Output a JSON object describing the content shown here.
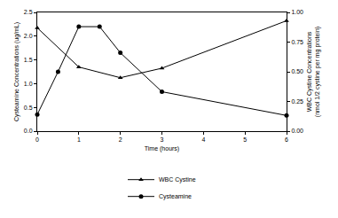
{
  "chart_data": {
    "type": "line",
    "x_label": "Time (hours)",
    "y_label": "Cysteamine Concentrations (ug/mL)",
    "y2_label": "WBC Cystine Concentrations\n(nmol 1/2 cystine per mg protein)",
    "xlim": [
      0,
      6
    ],
    "xticks": [
      0,
      1,
      2,
      3,
      4,
      5,
      6
    ],
    "ylim": [
      0,
      2.5
    ],
    "yticks": [
      {
        "value": 0,
        "label": "0.0"
      },
      0.5,
      {
        "value": 1,
        "label": "1.0"
      },
      1.5,
      {
        "value": 2,
        "label": "2.0"
      },
      2.5
    ],
    "y2lim": [
      0,
      1
    ],
    "y2ticks": [
      {
        "value": 0,
        "label": "0.00"
      },
      0.25,
      {
        "value": 0.5,
        "label": "0.50"
      },
      0.75,
      {
        "value": 1,
        "label": "1.00"
      }
    ],
    "grid": false,
    "legend": "bottom",
    "series": [
      {
        "name": "WBC Cystine",
        "color": "#000000",
        "marker": "triangle-up",
        "line_style": "solid",
        "axis": "y2",
        "x": [
          0,
          1,
          2,
          3,
          6
        ],
        "values": [
          0.87,
          0.54,
          0.45,
          0.53,
          0.93
        ]
      },
      {
        "name": "Cysteamine",
        "color": "#000000",
        "marker": "circle",
        "line_style": "solid",
        "axis": "y",
        "x": [
          0,
          0.5,
          1,
          1.5,
          2,
          3,
          6
        ],
        "values": [
          0.35,
          1.25,
          2.2,
          2.2,
          1.65,
          0.83,
          0.33
        ]
      }
    ]
  }
}
